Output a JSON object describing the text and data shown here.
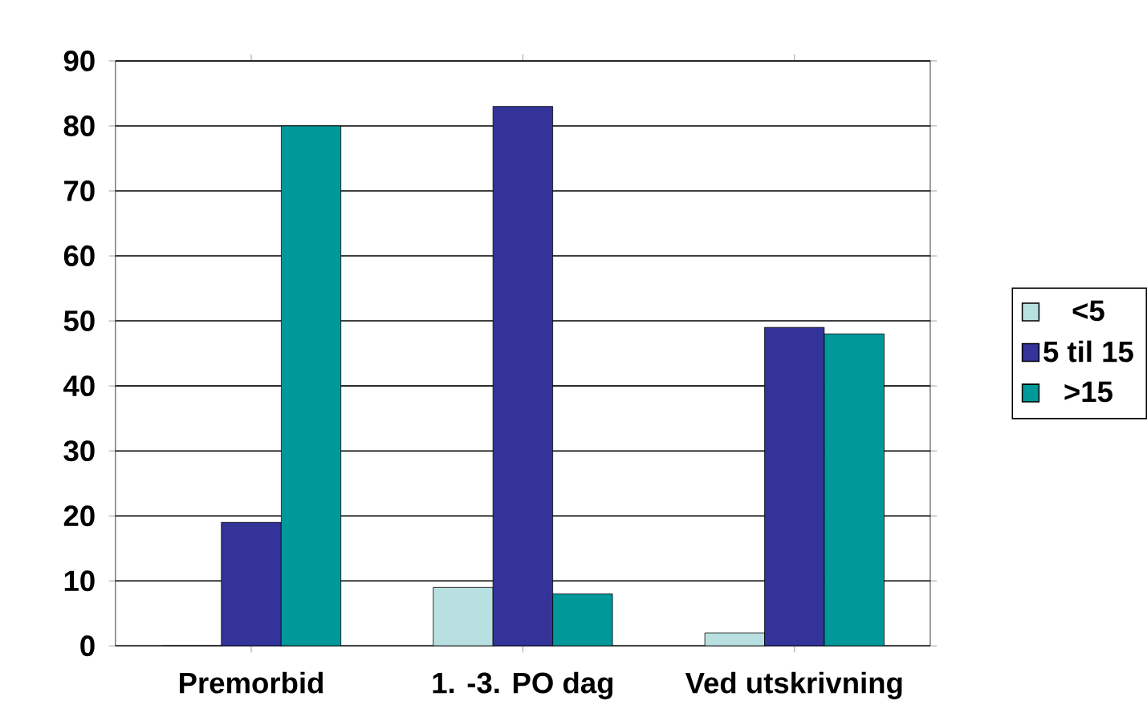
{
  "chart_data": {
    "type": "bar",
    "categories": [
      "Premorbid",
      "1. -3. PO dag",
      "Ved utskrivning"
    ],
    "series": [
      {
        "name": "<5",
        "color": "#b8e0e0",
        "values": [
          0,
          9,
          2
        ]
      },
      {
        "name": "5 til 15",
        "color": "#333399",
        "values": [
          19,
          83,
          49
        ]
      },
      {
        "name": ">15",
        "color": "#009999",
        "values": [
          80,
          8,
          48
        ]
      }
    ],
    "ylim": [
      0,
      90
    ],
    "yticks": [
      0,
      10,
      20,
      30,
      40,
      50,
      60,
      70,
      80,
      90
    ],
    "grid": "y",
    "legend": "right"
  }
}
